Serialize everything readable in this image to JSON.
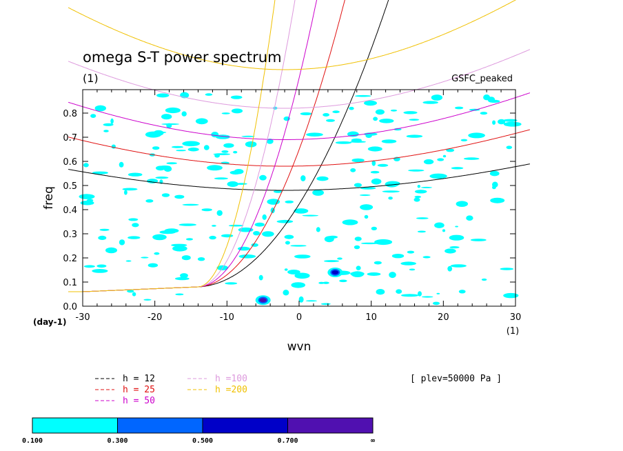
{
  "chart_data": {
    "type": "line",
    "title": "omega S-T power spectrum",
    "subtitle": "(1)",
    "dataset_label": "GSFC_peaked",
    "xlabel": "wvn",
    "ylabel": "freq",
    "x_units": "(1)",
    "y_units": "(day-1)",
    "xlim": [
      -30,
      30
    ],
    "ylim": [
      0,
      0.88
    ],
    "xticks": [
      -30,
      -20,
      -10,
      0,
      10,
      20,
      30
    ],
    "yticks": [
      0.0,
      0.1,
      0.2,
      0.3,
      0.4,
      0.5,
      0.6,
      0.7,
      0.8
    ],
    "plev_label": "[ plev=50000 Pa ]",
    "dispersion_curves": [
      {
        "name": "h = 12",
        "color": "#000000"
      },
      {
        "name": "h = 25",
        "color": "#e01010"
      },
      {
        "name": "h = 50",
        "color": "#cc00cc"
      },
      {
        "name": "h =100",
        "color": "#dd99dd"
      },
      {
        "name": "h =200",
        "color": "#f0c000"
      }
    ],
    "colorbar": {
      "levels": [
        "0.100",
        "0.300",
        "0.500",
        "0.700",
        "∞"
      ],
      "colors": [
        "#00ffff",
        "#0066ff",
        "#0000c8",
        "#5010b0"
      ]
    },
    "contour_peaks": [
      {
        "x": 5,
        "y": 0.14,
        "level": "0.300"
      },
      {
        "x": -5,
        "y": 0.025,
        "level": "0.500"
      }
    ]
  }
}
